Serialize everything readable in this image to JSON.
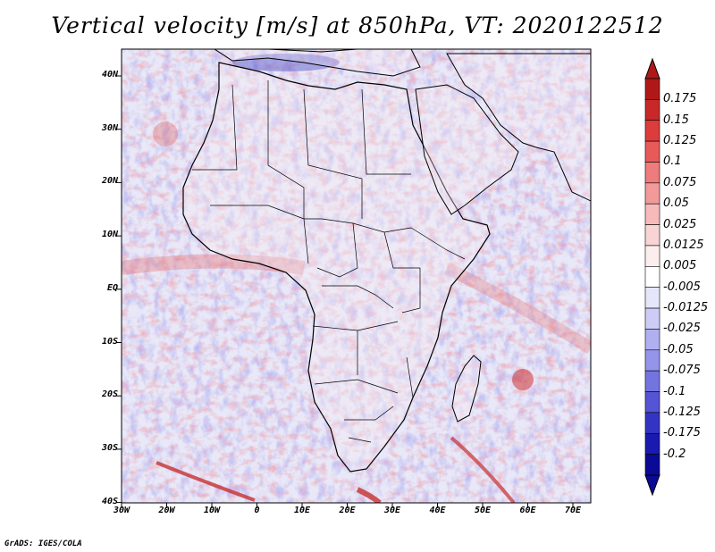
{
  "title": "Vertical velocity [m/s] at 850hPa, VT: 2020122512",
  "credit": "GrADS: IGES/COLA",
  "axes": {
    "lat_labels": [
      "40N",
      "30N",
      "20N",
      "10N",
      "EQ",
      "10S",
      "20S",
      "30S",
      "40S"
    ],
    "lon_labels": [
      "30W",
      "20W",
      "10W",
      "0",
      "10E",
      "20E",
      "30E",
      "40E",
      "50E",
      "60E",
      "70E"
    ]
  },
  "colorbar": {
    "labels": [
      "0.175",
      "0.15",
      "0.125",
      "0.1",
      "0.075",
      "0.05",
      "0.025",
      "0.0125",
      "0.005",
      "-0.005",
      "-0.0125",
      "-0.025",
      "-0.05",
      "-0.075",
      "-0.1",
      "-0.125",
      "-0.175",
      "-0.2"
    ],
    "colors": [
      "#b01818",
      "#c82828",
      "#dc3c3c",
      "#e85a5a",
      "#ee7c7c",
      "#f29a9a",
      "#f6baba",
      "#f9d4d4",
      "#fdeeee",
      "#ffffff",
      "#e6e6fa",
      "#ccccf6",
      "#b0b0f0",
      "#9494ea",
      "#7474e0",
      "#5454d4",
      "#3434c4",
      "#1a1ab0",
      "#0a0a96"
    ]
  },
  "colors": {
    "ocean_base": "#e8e8f8",
    "land_base": "#f4e8ee",
    "updraft": "#e04040",
    "downdraft": "#5050d8",
    "coastline": "#000000"
  }
}
